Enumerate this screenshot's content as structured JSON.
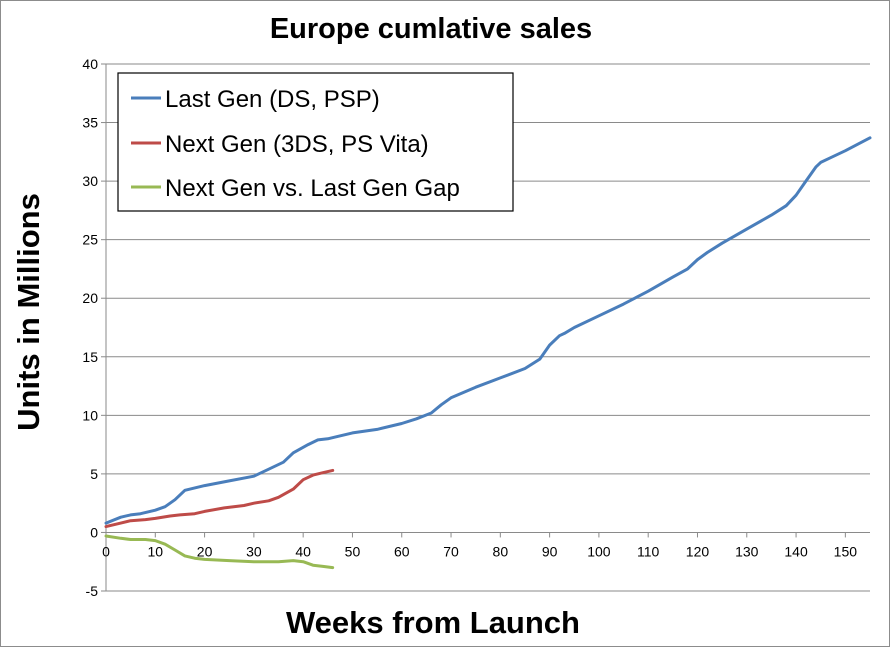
{
  "chart_data": {
    "type": "line",
    "title": "Europe cumlative sales",
    "xlabel": "Weeks from Launch",
    "ylabel": "Units in Millions",
    "xlim": [
      0,
      155
    ],
    "ylim": [
      -5,
      40
    ],
    "xticks": [
      "0",
      "10",
      "20",
      "30",
      "40",
      "50",
      "60",
      "70",
      "80",
      "90",
      "100",
      "110",
      "120",
      "130",
      "140",
      "150"
    ],
    "yticks": [
      "-5",
      "0",
      "5",
      "10",
      "15",
      "20",
      "25",
      "30",
      "35",
      "40"
    ],
    "grid": true,
    "legend_position": "top-left",
    "series": [
      {
        "name": "Last Gen (DS, PSP)",
        "color": "#4a7ebb",
        "x": [
          0,
          3,
          5,
          7,
          10,
          12,
          14,
          16,
          20,
          25,
          30,
          33,
          36,
          38,
          41,
          43,
          45,
          47,
          50,
          55,
          60,
          63,
          66,
          68,
          70,
          75,
          80,
          85,
          88,
          90,
          92,
          93,
          95,
          100,
          105,
          110,
          115,
          118,
          120,
          122,
          125,
          130,
          135,
          138,
          140,
          142,
          144,
          145,
          147,
          150,
          155
        ],
        "y": [
          0.8,
          1.3,
          1.5,
          1.6,
          1.9,
          2.2,
          2.8,
          3.6,
          4.0,
          4.4,
          4.8,
          5.4,
          6.0,
          6.8,
          7.5,
          7.9,
          8.0,
          8.2,
          8.5,
          8.8,
          9.3,
          9.7,
          10.2,
          10.9,
          11.5,
          12.4,
          13.2,
          14.0,
          14.8,
          16.0,
          16.8,
          17.0,
          17.5,
          18.5,
          19.5,
          20.6,
          21.8,
          22.5,
          23.3,
          23.9,
          24.7,
          25.9,
          27.1,
          27.9,
          28.8,
          30.0,
          31.2,
          31.6,
          32.0,
          32.6,
          33.7
        ]
      },
      {
        "name": "Next Gen (3DS, PS Vita)",
        "color": "#be4b48",
        "x": [
          0,
          3,
          5,
          8,
          10,
          13,
          15,
          18,
          20,
          24,
          28,
          30,
          33,
          35,
          38,
          40,
          42,
          44,
          46
        ],
        "y": [
          0.5,
          0.8,
          1.0,
          1.1,
          1.2,
          1.4,
          1.5,
          1.6,
          1.8,
          2.1,
          2.3,
          2.5,
          2.7,
          3.0,
          3.7,
          4.5,
          4.9,
          5.1,
          5.3
        ]
      },
      {
        "name": "Next Gen vs. Last Gen Gap",
        "color": "#98b954",
        "x": [
          0,
          3,
          5,
          8,
          10,
          12,
          14,
          16,
          18,
          20,
          25,
          30,
          35,
          38,
          40,
          42,
          44,
          46
        ],
        "y": [
          -0.3,
          -0.5,
          -0.6,
          -0.6,
          -0.7,
          -1.0,
          -1.5,
          -2.0,
          -2.2,
          -2.3,
          -2.4,
          -2.5,
          -2.5,
          -2.4,
          -2.5,
          -2.8,
          -2.9,
          -3.0
        ]
      }
    ]
  }
}
